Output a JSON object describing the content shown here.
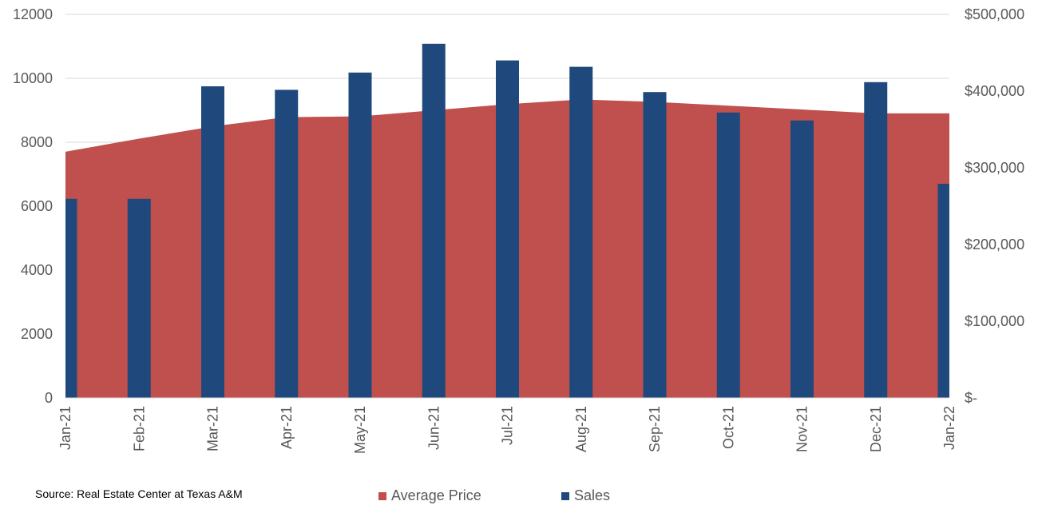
{
  "chart_data": {
    "type": "bar",
    "categories": [
      "Jan-21",
      "Feb-21",
      "Mar-21",
      "Apr-21",
      "May-21",
      "Jun-21",
      "Jul-21",
      "Aug-21",
      "Sep-21",
      "Oct-21",
      "Nov-21",
      "Dec-21",
      "Jan-22"
    ],
    "series": [
      {
        "name": "Average Price",
        "type": "area",
        "axis": "right",
        "color": "#c0504d",
        "values": [
          321000,
          338000,
          354000,
          366000,
          367000,
          375000,
          383000,
          389000,
          386000,
          381000,
          376000,
          371000,
          371000
        ]
      },
      {
        "name": "Sales",
        "type": "bar",
        "axis": "left",
        "color": "#1f497d",
        "values": [
          6230,
          6230,
          9750,
          9640,
          10180,
          11080,
          10560,
          10360,
          9570,
          8930,
          8680,
          9880,
          6700
        ]
      }
    ],
    "y_left": {
      "min": 0,
      "max": 12000,
      "ticks": [
        "0",
        "2000",
        "4000",
        "6000",
        "8000",
        "10000",
        "12000"
      ],
      "tick_values": [
        0,
        2000,
        4000,
        6000,
        8000,
        10000,
        12000
      ]
    },
    "y_right": {
      "min": 0,
      "max": 500000,
      "ticks": [
        "$-",
        "$100,000",
        "$200,000",
        "$300,000",
        "$400,000",
        "$500,000"
      ],
      "tick_values": [
        0,
        100000,
        200000,
        300000,
        400000,
        500000
      ]
    },
    "grid": true,
    "legend_position": "bottom"
  },
  "source_text": "Source: Real Estate Center at Texas A&M",
  "legend": [
    {
      "label": "Average Price",
      "color": "#c0504d"
    },
    {
      "label": "Sales",
      "color": "#1f497d"
    }
  ]
}
